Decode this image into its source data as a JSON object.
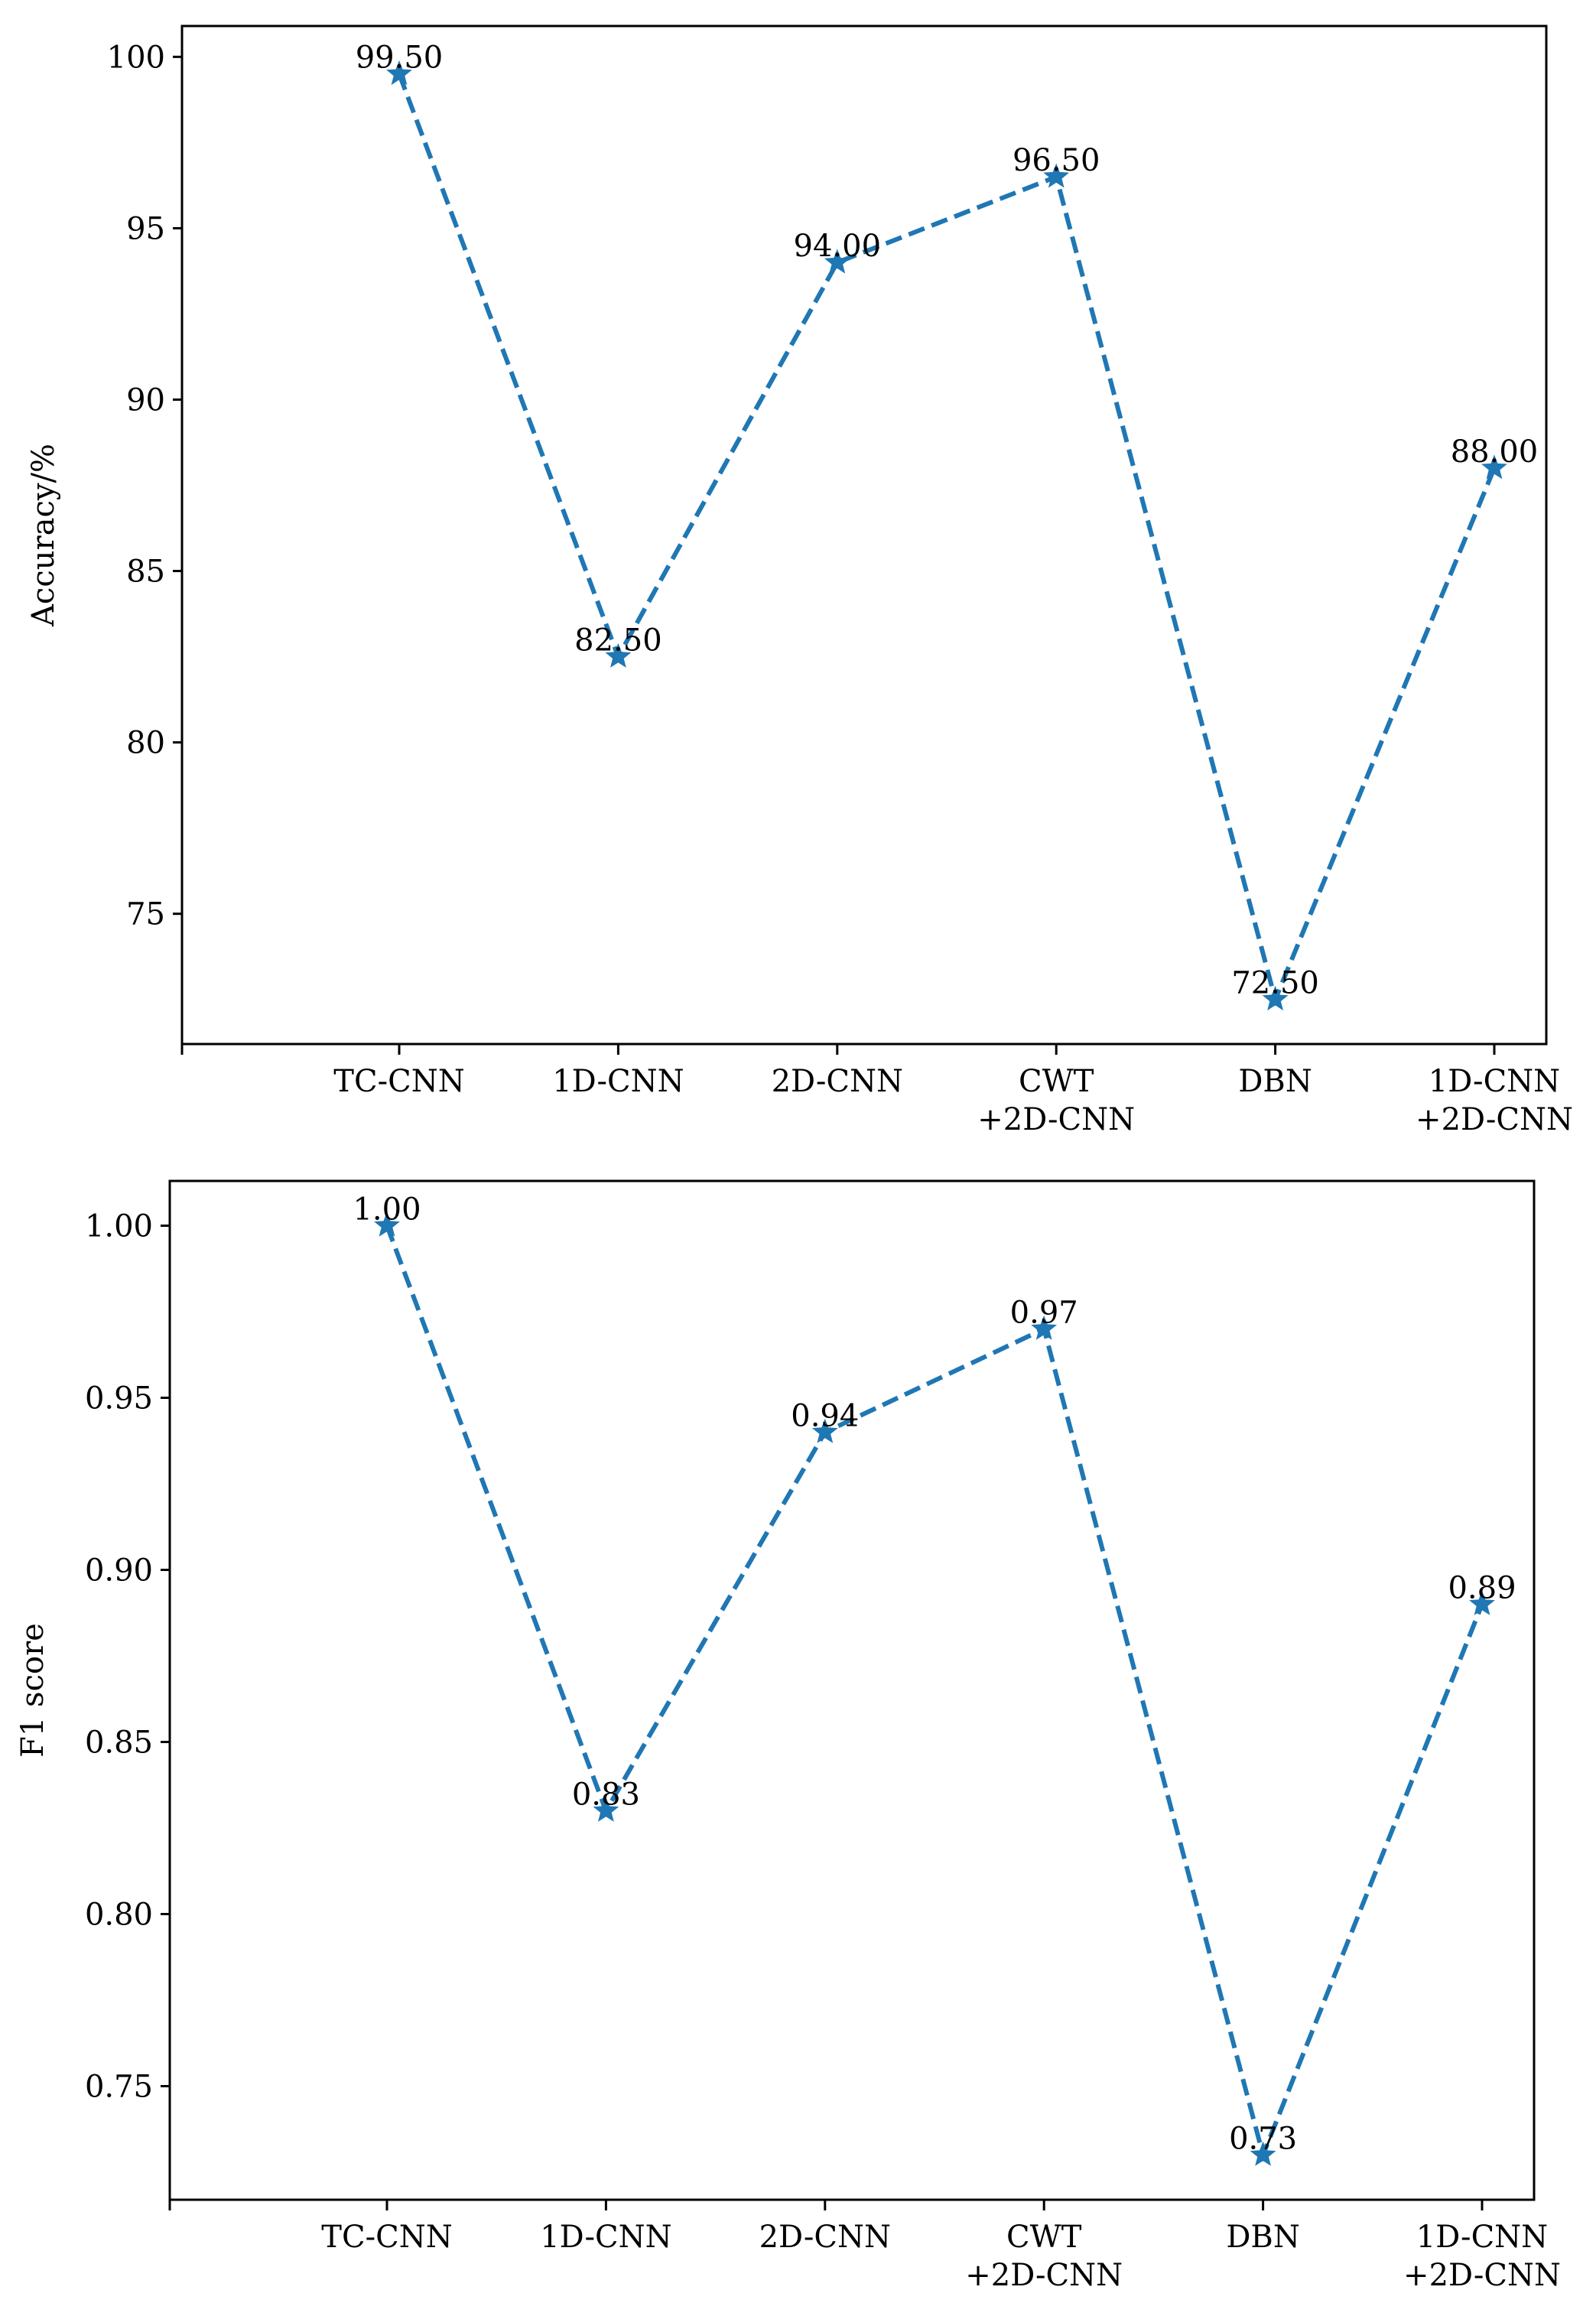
{
  "chart_data": [
    {
      "type": "line",
      "categories": [
        "TC-CNN",
        "1D-CNN",
        "2D-CNN",
        "CWT\n+2D-CNN",
        "DBN",
        "1D-CNN\n+2D-CNN"
      ],
      "series": [
        {
          "name": "Accuracy",
          "values": [
            99.5,
            82.5,
            94.0,
            96.5,
            72.5,
            88.0
          ]
        }
      ],
      "data_labels": [
        "99.50",
        "82.50",
        "94.00",
        "96.50",
        "72.50",
        "88.00"
      ],
      "title": "",
      "xlabel": "",
      "ylabel": "Accuracy/%",
      "ylim": [
        71.2,
        100.9
      ],
      "yticks": [
        75,
        80,
        85,
        90,
        95,
        100
      ],
      "ytick_labels": [
        "75",
        "80",
        "85",
        "90",
        "95",
        "100"
      ],
      "grid": false,
      "line_style": "dashed",
      "marker": "star",
      "color": "#1f77b4"
    },
    {
      "type": "line",
      "categories": [
        "TC-CNN",
        "1D-CNN",
        "2D-CNN",
        "CWT\n+2D-CNN",
        "DBN",
        "1D-CNN\n+2D-CNN"
      ],
      "series": [
        {
          "name": "F1 score",
          "values": [
            1.0,
            0.83,
            0.94,
            0.97,
            0.73,
            0.89
          ]
        }
      ],
      "data_labels": [
        "1.00",
        "0.83",
        "0.94",
        "0.97",
        "0.73",
        "0.89"
      ],
      "title": "",
      "xlabel": "",
      "ylabel": "F1 score",
      "ylim": [
        0.717,
        1.013
      ],
      "yticks": [
        0.75,
        0.8,
        0.85,
        0.9,
        0.95,
        1.0
      ],
      "ytick_labels": [
        "0.75",
        "0.80",
        "0.85",
        "0.90",
        "0.95",
        "1.00"
      ],
      "grid": false,
      "line_style": "dashed",
      "marker": "star",
      "color": "#1f77b4"
    }
  ]
}
